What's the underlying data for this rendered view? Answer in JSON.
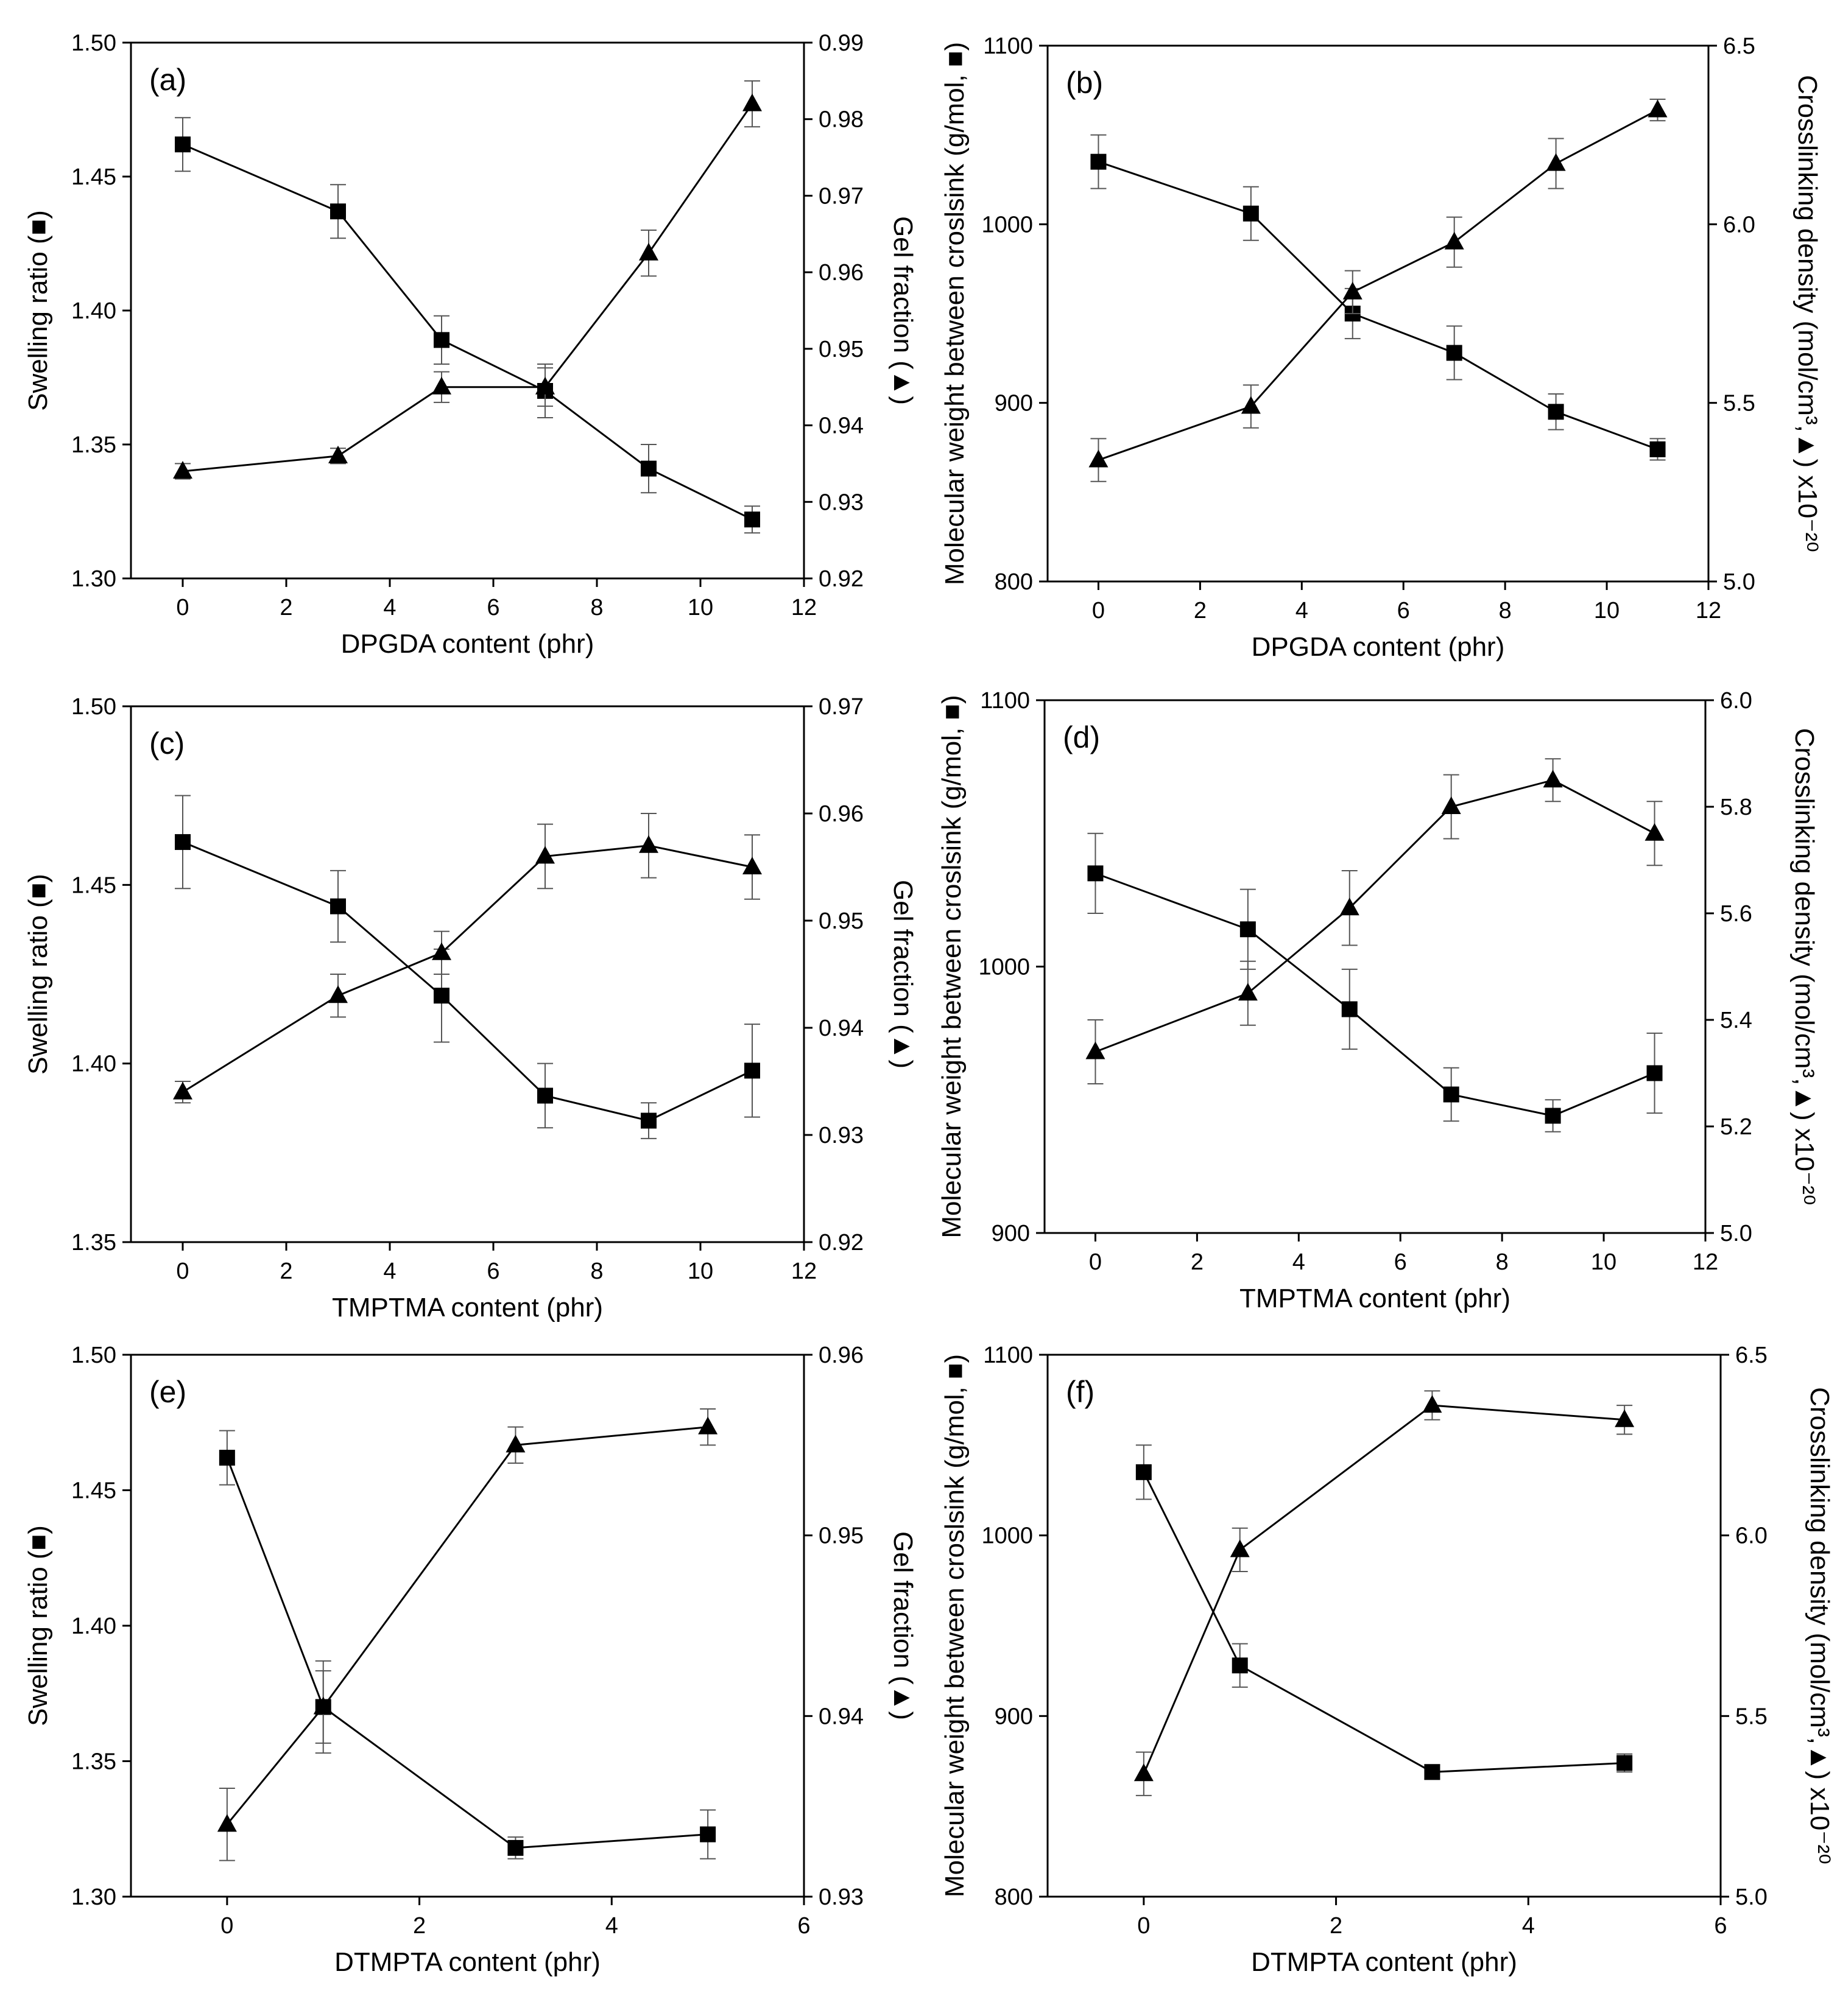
{
  "chart_data": [
    {
      "type": "line",
      "panel_label": "(a)",
      "xlabel": "DPGDA content (phr)",
      "ylabel_left": "Swelling ratio (■)",
      "ylabel_right": "Gel fraction (▲)",
      "xlim": [
        -1,
        12
      ],
      "xticks": [
        0,
        2,
        4,
        6,
        8,
        10,
        12
      ],
      "xtick_labels": [
        "0",
        "2",
        "4",
        "6",
        "8",
        "10",
        "12"
      ],
      "ylim_left": [
        1.3,
        1.5
      ],
      "yticks_left": [
        1.3,
        1.35,
        1.4,
        1.45,
        1.5
      ],
      "ytick_labels_left": [
        "1.30",
        "1.35",
        "1.40",
        "1.45",
        "1.50"
      ],
      "ylim_right": [
        0.92,
        0.99
      ],
      "yticks_right": [
        0.92,
        0.93,
        0.94,
        0.95,
        0.96,
        0.97,
        0.98,
        0.99
      ],
      "ytick_labels_right": [
        "0.92",
        "0.93",
        "0.94",
        "0.95",
        "0.96",
        "0.97",
        "0.98",
        "0.99"
      ],
      "series": [
        {
          "name": "Swelling ratio",
          "marker": "square",
          "axis": "left",
          "x": [
            0,
            3,
            5,
            7,
            9,
            11
          ],
          "values": [
            1.462,
            1.437,
            1.389,
            1.37,
            1.341,
            1.322
          ],
          "errors": [
            0.01,
            0.01,
            0.009,
            0.01,
            0.009,
            0.005
          ]
        },
        {
          "name": "Gel fraction",
          "marker": "triangle",
          "axis": "right",
          "x": [
            0,
            3,
            5,
            7,
            9,
            11
          ],
          "values": [
            0.934,
            0.936,
            0.945,
            0.945,
            0.9625,
            0.982
          ],
          "errors": [
            0.001,
            0.001,
            0.002,
            0.0025,
            0.003,
            0.003
          ]
        }
      ]
    },
    {
      "type": "line",
      "panel_label": "(b)",
      "xlabel": "DPGDA content (phr)",
      "ylabel_left": "Molecular weight between croslsink (g/mol, ■)",
      "ylabel_right": "Crosslinking density (mol/cm³,▲) x10⁻²⁰",
      "xlim": [
        -1,
        12
      ],
      "xticks": [
        0,
        2,
        4,
        6,
        8,
        10,
        12
      ],
      "xtick_labels": [
        "0",
        "2",
        "4",
        "6",
        "8",
        "10",
        "12"
      ],
      "ylim_left": [
        800,
        1100
      ],
      "yticks_left": [
        800,
        900,
        1000,
        1100
      ],
      "ytick_labels_left": [
        "800",
        "900",
        "1000",
        "1100"
      ],
      "ylim_right": [
        5.0,
        6.5
      ],
      "yticks_right": [
        5.0,
        5.5,
        6.0,
        6.5
      ],
      "ytick_labels_right": [
        "5.0",
        "5.5",
        "6.0",
        "6.5"
      ],
      "series": [
        {
          "name": "Molecular weight between crosslink",
          "marker": "square",
          "axis": "left",
          "x": [
            0,
            3,
            5,
            7,
            9,
            11
          ],
          "values": [
            1035,
            1006,
            950,
            928,
            895,
            874
          ],
          "errors": [
            15,
            15,
            14,
            15,
            10,
            6
          ]
        },
        {
          "name": "Crosslinking density",
          "marker": "triangle",
          "axis": "right",
          "x": [
            0,
            3,
            5,
            7,
            9,
            11
          ],
          "values": [
            5.34,
            5.49,
            5.81,
            5.95,
            6.17,
            6.32
          ],
          "errors": [
            0.06,
            0.06,
            0.06,
            0.07,
            0.07,
            0.03
          ]
        }
      ]
    },
    {
      "type": "line",
      "panel_label": "(c)",
      "xlabel": "TMPTMA content (phr)",
      "ylabel_left": "Swelling ratio (■)",
      "ylabel_right": "Gel fraction (▲)",
      "xlim": [
        -1,
        12
      ],
      "xticks": [
        0,
        2,
        4,
        6,
        8,
        10,
        12
      ],
      "xtick_labels": [
        "0",
        "2",
        "4",
        "6",
        "8",
        "10",
        "12"
      ],
      "ylim_left": [
        1.35,
        1.5
      ],
      "yticks_left": [
        1.35,
        1.4,
        1.45,
        1.5
      ],
      "ytick_labels_left": [
        "1.35",
        "1.40",
        "1.45",
        "1.50"
      ],
      "ylim_right": [
        0.92,
        0.97
      ],
      "yticks_right": [
        0.92,
        0.93,
        0.94,
        0.95,
        0.96,
        0.97
      ],
      "ytick_labels_right": [
        "0.92",
        "0.93",
        "0.94",
        "0.95",
        "0.96",
        "0.97"
      ],
      "series": [
        {
          "name": "Swelling ratio",
          "marker": "square",
          "axis": "left",
          "x": [
            0,
            3,
            5,
            7,
            9,
            11
          ],
          "values": [
            1.462,
            1.444,
            1.419,
            1.391,
            1.384,
            1.398
          ],
          "errors": [
            0.013,
            0.01,
            0.013,
            0.009,
            0.005,
            0.013
          ]
        },
        {
          "name": "Gel fraction",
          "marker": "triangle",
          "axis": "right",
          "x": [
            0,
            3,
            5,
            7,
            9,
            11
          ],
          "values": [
            0.934,
            0.943,
            0.947,
            0.956,
            0.957,
            0.955
          ],
          "errors": [
            0.001,
            0.002,
            0.002,
            0.003,
            0.003,
            0.003
          ]
        }
      ]
    },
    {
      "type": "line",
      "panel_label": "(d)",
      "xlabel": "TMPTMA content (phr)",
      "ylabel_left": "Molecular weight between croslsink (g/mol, ■)",
      "ylabel_right": "Crosslinking density (mol/cm³,▲) x10⁻²⁰",
      "xlim": [
        -1,
        12
      ],
      "xticks": [
        0,
        2,
        4,
        6,
        8,
        10,
        12
      ],
      "xtick_labels": [
        "0",
        "2",
        "4",
        "6",
        "8",
        "10",
        "12"
      ],
      "ylim_left": [
        900,
        1100
      ],
      "yticks_left": [
        900,
        1000,
        1100
      ],
      "ytick_labels_left": [
        "900",
        "1000",
        "1100"
      ],
      "ylim_right": [
        5.0,
        6.0
      ],
      "yticks_right": [
        5.0,
        5.2,
        5.4,
        5.6,
        5.8,
        6.0
      ],
      "ytick_labels_right": [
        "5.0",
        "5.2",
        "5.4",
        "5.6",
        "5.8",
        "6.0"
      ],
      "series": [
        {
          "name": "Molecular weight between crosslink",
          "marker": "square",
          "axis": "left",
          "x": [
            0,
            3,
            5,
            7,
            9,
            11
          ],
          "values": [
            1035,
            1014,
            984,
            952,
            944,
            960
          ],
          "errors": [
            15,
            15,
            15,
            10,
            6,
            15
          ]
        },
        {
          "name": "Crosslinking density",
          "marker": "triangle",
          "axis": "right",
          "x": [
            0,
            3,
            5,
            7,
            9,
            11
          ],
          "values": [
            5.34,
            5.45,
            5.61,
            5.8,
            5.85,
            5.75
          ],
          "errors": [
            0.06,
            0.06,
            0.07,
            0.06,
            0.04,
            0.06
          ]
        }
      ]
    },
    {
      "type": "line",
      "panel_label": "(e)",
      "xlabel": "DTMPTA content (phr)",
      "ylabel_left": "Swelling ratio (■)",
      "ylabel_right": "Gel fraction (▲)",
      "xlim": [
        -1,
        6
      ],
      "xticks": [
        0,
        2,
        4,
        6
      ],
      "xtick_labels": [
        "0",
        "2",
        "4",
        "6"
      ],
      "ylim_left": [
        1.3,
        1.5
      ],
      "yticks_left": [
        1.3,
        1.35,
        1.4,
        1.45,
        1.5
      ],
      "ytick_labels_left": [
        "1.30",
        "1.35",
        "1.40",
        "1.45",
        "1.50"
      ],
      "ylim_right": [
        0.93,
        0.96
      ],
      "yticks_right": [
        0.93,
        0.94,
        0.95,
        0.96
      ],
      "ytick_labels_right": [
        "0.93",
        "0.94",
        "0.95",
        "0.96"
      ],
      "series": [
        {
          "name": "Swelling ratio",
          "marker": "square",
          "axis": "left",
          "x": [
            0,
            1,
            3,
            5
          ],
          "values": [
            1.462,
            1.37,
            1.318,
            1.323
          ],
          "errors": [
            0.01,
            0.017,
            0.004,
            0.009
          ]
        },
        {
          "name": "Gel fraction",
          "marker": "triangle",
          "axis": "right",
          "x": [
            0,
            1,
            3,
            5
          ],
          "values": [
            0.934,
            0.9405,
            0.955,
            0.956
          ],
          "errors": [
            0.002,
            0.002,
            0.001,
            0.001
          ]
        }
      ]
    },
    {
      "type": "line",
      "panel_label": "(f)",
      "xlabel": "DTMPTA content (phr)",
      "ylabel_left": "Molecular weight between croslsink (g/mol, ■)",
      "ylabel_right": "Crosslinking density (mol/cm³,▲) x10⁻²⁰",
      "xlim": [
        -1,
        6
      ],
      "xticks": [
        0,
        2,
        4,
        6
      ],
      "xtick_labels": [
        "0",
        "2",
        "4",
        "6"
      ],
      "ylim_left": [
        800,
        1100
      ],
      "yticks_left": [
        800,
        900,
        1000,
        1100
      ],
      "ytick_labels_left": [
        "800",
        "900",
        "1000",
        "1100"
      ],
      "ylim_right": [
        5.0,
        6.5
      ],
      "yticks_right": [
        5.0,
        5.5,
        6.0,
        6.5
      ],
      "ytick_labels_right": [
        "5.0",
        "5.5",
        "6.0",
        "6.5"
      ],
      "series": [
        {
          "name": "Molecular weight between crosslink",
          "marker": "square",
          "axis": "left",
          "x": [
            0,
            1,
            3,
            5
          ],
          "values": [
            1035,
            928,
            869,
            874
          ],
          "errors": [
            15,
            12,
            4,
            5
          ]
        },
        {
          "name": "Crosslinking density",
          "marker": "triangle",
          "axis": "right",
          "x": [
            0,
            1,
            3,
            5
          ],
          "values": [
            5.34,
            5.96,
            6.36,
            6.32
          ],
          "errors": [
            0.06,
            0.06,
            0.04,
            0.04
          ]
        }
      ]
    }
  ]
}
